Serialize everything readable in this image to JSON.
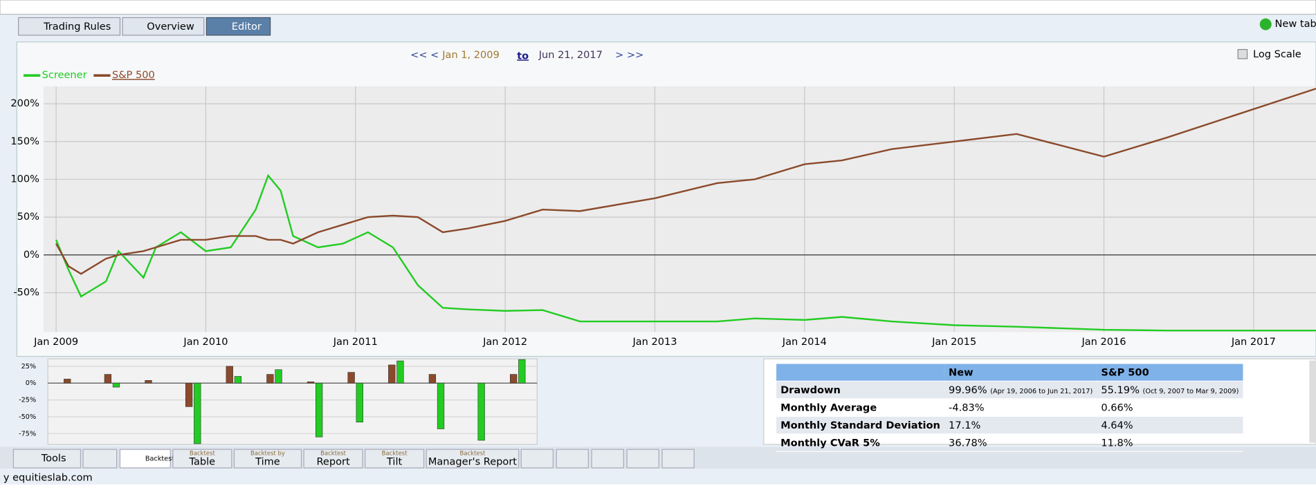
{
  "header": {
    "tabs": [
      "Trading Rules",
      "Overview",
      "Editor"
    ],
    "new_tab": "New tab"
  },
  "date_range": {
    "prev": "<< <",
    "start": "Jan 1, 2009",
    "to": "to",
    "end": "Jun 21, 2017",
    "next": "> >>"
  },
  "log_scale_label": "Log Scale",
  "chart_data": [
    {
      "type": "line",
      "log_scale": false,
      "grid": true,
      "x": [
        "2009-01",
        "2009-02",
        "2009-03",
        "2009-05",
        "2009-06",
        "2009-08",
        "2009-09",
        "2009-11",
        "2010-01",
        "2010-03",
        "2010-05",
        "2010-06",
        "2010-07",
        "2010-08",
        "2010-10",
        "2010-12",
        "2011-02",
        "2011-04",
        "2011-06",
        "2011-08",
        "2011-10",
        "2012-01",
        "2012-04",
        "2012-07",
        "2013-01",
        "2013-06",
        "2013-09",
        "2014-01",
        "2014-04",
        "2014-08",
        "2015-01",
        "2015-06",
        "2016-01",
        "2016-06",
        "2017-06"
      ],
      "series": [
        {
          "name": "Screener",
          "color": "#22cc22",
          "values": [
            20,
            -20,
            -55,
            -35,
            5,
            -30,
            10,
            30,
            5,
            10,
            60,
            105,
            85,
            25,
            10,
            15,
            30,
            10,
            -40,
            -70,
            -72,
            -74,
            -73,
            -88,
            -88,
            -88,
            -84,
            -86,
            -82,
            -88,
            -93,
            -95,
            -99,
            -100,
            -100
          ]
        },
        {
          "name": "S&P 500",
          "color": "#8b4a2b",
          "values": [
            15,
            -15,
            -25,
            -5,
            0,
            5,
            10,
            20,
            20,
            25,
            25,
            20,
            20,
            15,
            30,
            40,
            50,
            52,
            50,
            30,
            35,
            45,
            60,
            58,
            75,
            95,
            100,
            120,
            125,
            140,
            150,
            160,
            130,
            155,
            220
          ]
        }
      ],
      "xlim": [
        "2008-12",
        "2017-06"
      ],
      "xticks": [
        {
          "value": "2009-01",
          "label": "Jan 2009"
        },
        {
          "value": "2010-01",
          "label": "Jan 2010"
        },
        {
          "value": "2011-01",
          "label": "Jan 2011"
        },
        {
          "value": "2012-01",
          "label": "Jan 2012"
        },
        {
          "value": "2013-01",
          "label": "Jan 2013"
        },
        {
          "value": "2014-01",
          "label": "Jan 2014"
        },
        {
          "value": "2015-01",
          "label": "Jan 2015"
        },
        {
          "value": "2016-01",
          "label": "Jan 2016"
        },
        {
          "value": "2017-01",
          "label": "Jan 2017"
        }
      ],
      "ylim": [
        -102,
        223
      ],
      "yticks": [
        {
          "value": -50,
          "label": "-50%"
        },
        {
          "value": 0,
          "label": "0%"
        },
        {
          "value": 50,
          "label": "50%"
        },
        {
          "value": 100,
          "label": "100%"
        },
        {
          "value": 150,
          "label": "150%"
        },
        {
          "value": 200,
          "label": "200%"
        }
      ]
    },
    {
      "type": "bar",
      "categories": [
        null,
        null,
        null,
        null,
        null,
        null,
        null,
        null,
        null,
        null,
        null,
        null
      ],
      "series": [
        {
          "color": "#8b4a2b",
          "values": [
            6,
            13,
            4,
            -35,
            25,
            13,
            2,
            16,
            27,
            13,
            0,
            13
          ]
        },
        {
          "color": "#22cc22",
          "values": [
            0,
            -6,
            0,
            -90,
            10,
            20,
            -80,
            -58,
            33,
            -68,
            -85,
            35
          ]
        }
      ],
      "ylim": [
        -91,
        36
      ],
      "yticks": [
        {
          "value": 25,
          "label": "25%"
        },
        {
          "value": 0,
          "label": "0%"
        },
        {
          "value": -25,
          "label": "-25%"
        },
        {
          "value": -50,
          "label": "-50%"
        },
        {
          "value": -75,
          "label": "-75%"
        }
      ]
    }
  ],
  "stats_table": {
    "columns": [
      "New",
      "S&P 500"
    ],
    "rows": [
      {
        "label": "Drawdown",
        "new": "99.96%",
        "new_note": "(Apr 19, 2006 to Jun 21, 2017)",
        "sp": "55.19%",
        "sp_note": "(Oct 9, 2007 to Mar 9, 2009)"
      },
      {
        "label": "Monthly Average",
        "new": "-4.83%",
        "sp": "0.66%"
      },
      {
        "label": "Monthly Standard Deviation",
        "new": "17.1%",
        "sp": "4.64%"
      },
      {
        "label": "Monthly CVaR 5%",
        "new": "36.78%",
        "sp": "11.8%"
      }
    ]
  },
  "bottom_tabs": [
    {
      "label": "Tools"
    },
    {
      "label": "Backtest"
    },
    {
      "top": "Backtest",
      "label": "Table"
    },
    {
      "top": "Backtest by",
      "label": "Time"
    },
    {
      "top": "Backtest",
      "label": "Report"
    },
    {
      "top": "Backtest",
      "label": "Tilt"
    },
    {
      "top": "Backtest",
      "label": "Manager's Report"
    }
  ],
  "footer": "y equitieslab.com"
}
